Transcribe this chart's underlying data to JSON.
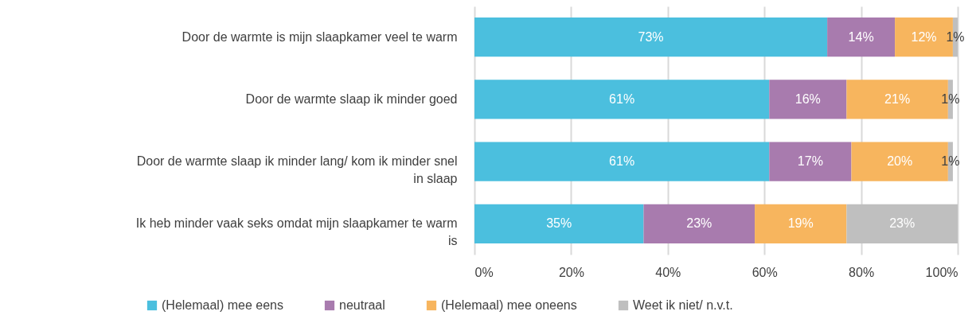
{
  "chart_data": {
    "type": "bar",
    "orientation": "horizontal",
    "stacked": true,
    "categories": [
      "Door de warmte is mijn slaapkamer veel te warm",
      "Door de warmte slaap ik minder goed",
      "Door de warmte slaap ik minder lang/ kom ik minder snel in slaap",
      "Ik heb minder vaak seks omdat mijn slaapkamer te warm is"
    ],
    "series": [
      {
        "name": "(Helemaal) mee eens",
        "color": "#4bbfde",
        "values": [
          73,
          61,
          61,
          35
        ],
        "value_labels": [
          "73%",
          "61%",
          "61%",
          "35%"
        ]
      },
      {
        "name": "neutraal",
        "color": "#a87bae",
        "values": [
          14,
          16,
          17,
          23
        ],
        "value_labels": [
          "14%",
          "16%",
          "17%",
          "23%"
        ]
      },
      {
        "name": "(Helemaal) mee oneens",
        "color": "#f7b55e",
        "values": [
          12,
          21,
          20,
          19
        ],
        "value_labels": [
          "12%",
          "21%",
          "20%",
          "19%"
        ]
      },
      {
        "name": "Weet ik niet/ n.v.t.",
        "color": "#bfbfbf",
        "values": [
          1,
          1,
          1,
          23
        ],
        "value_labels": [
          "1%",
          "1%",
          "1%",
          "23%"
        ]
      }
    ],
    "xlim": [
      0,
      100
    ],
    "xticks": [
      {
        "value": 0,
        "label": "0%"
      },
      {
        "value": 20,
        "label": "20%"
      },
      {
        "value": 40,
        "label": "40%"
      },
      {
        "value": 60,
        "label": "60%"
      },
      {
        "value": 80,
        "label": "80%"
      },
      {
        "value": 100,
        "label": "100%"
      }
    ],
    "grid": "x",
    "legend": "bottom"
  }
}
